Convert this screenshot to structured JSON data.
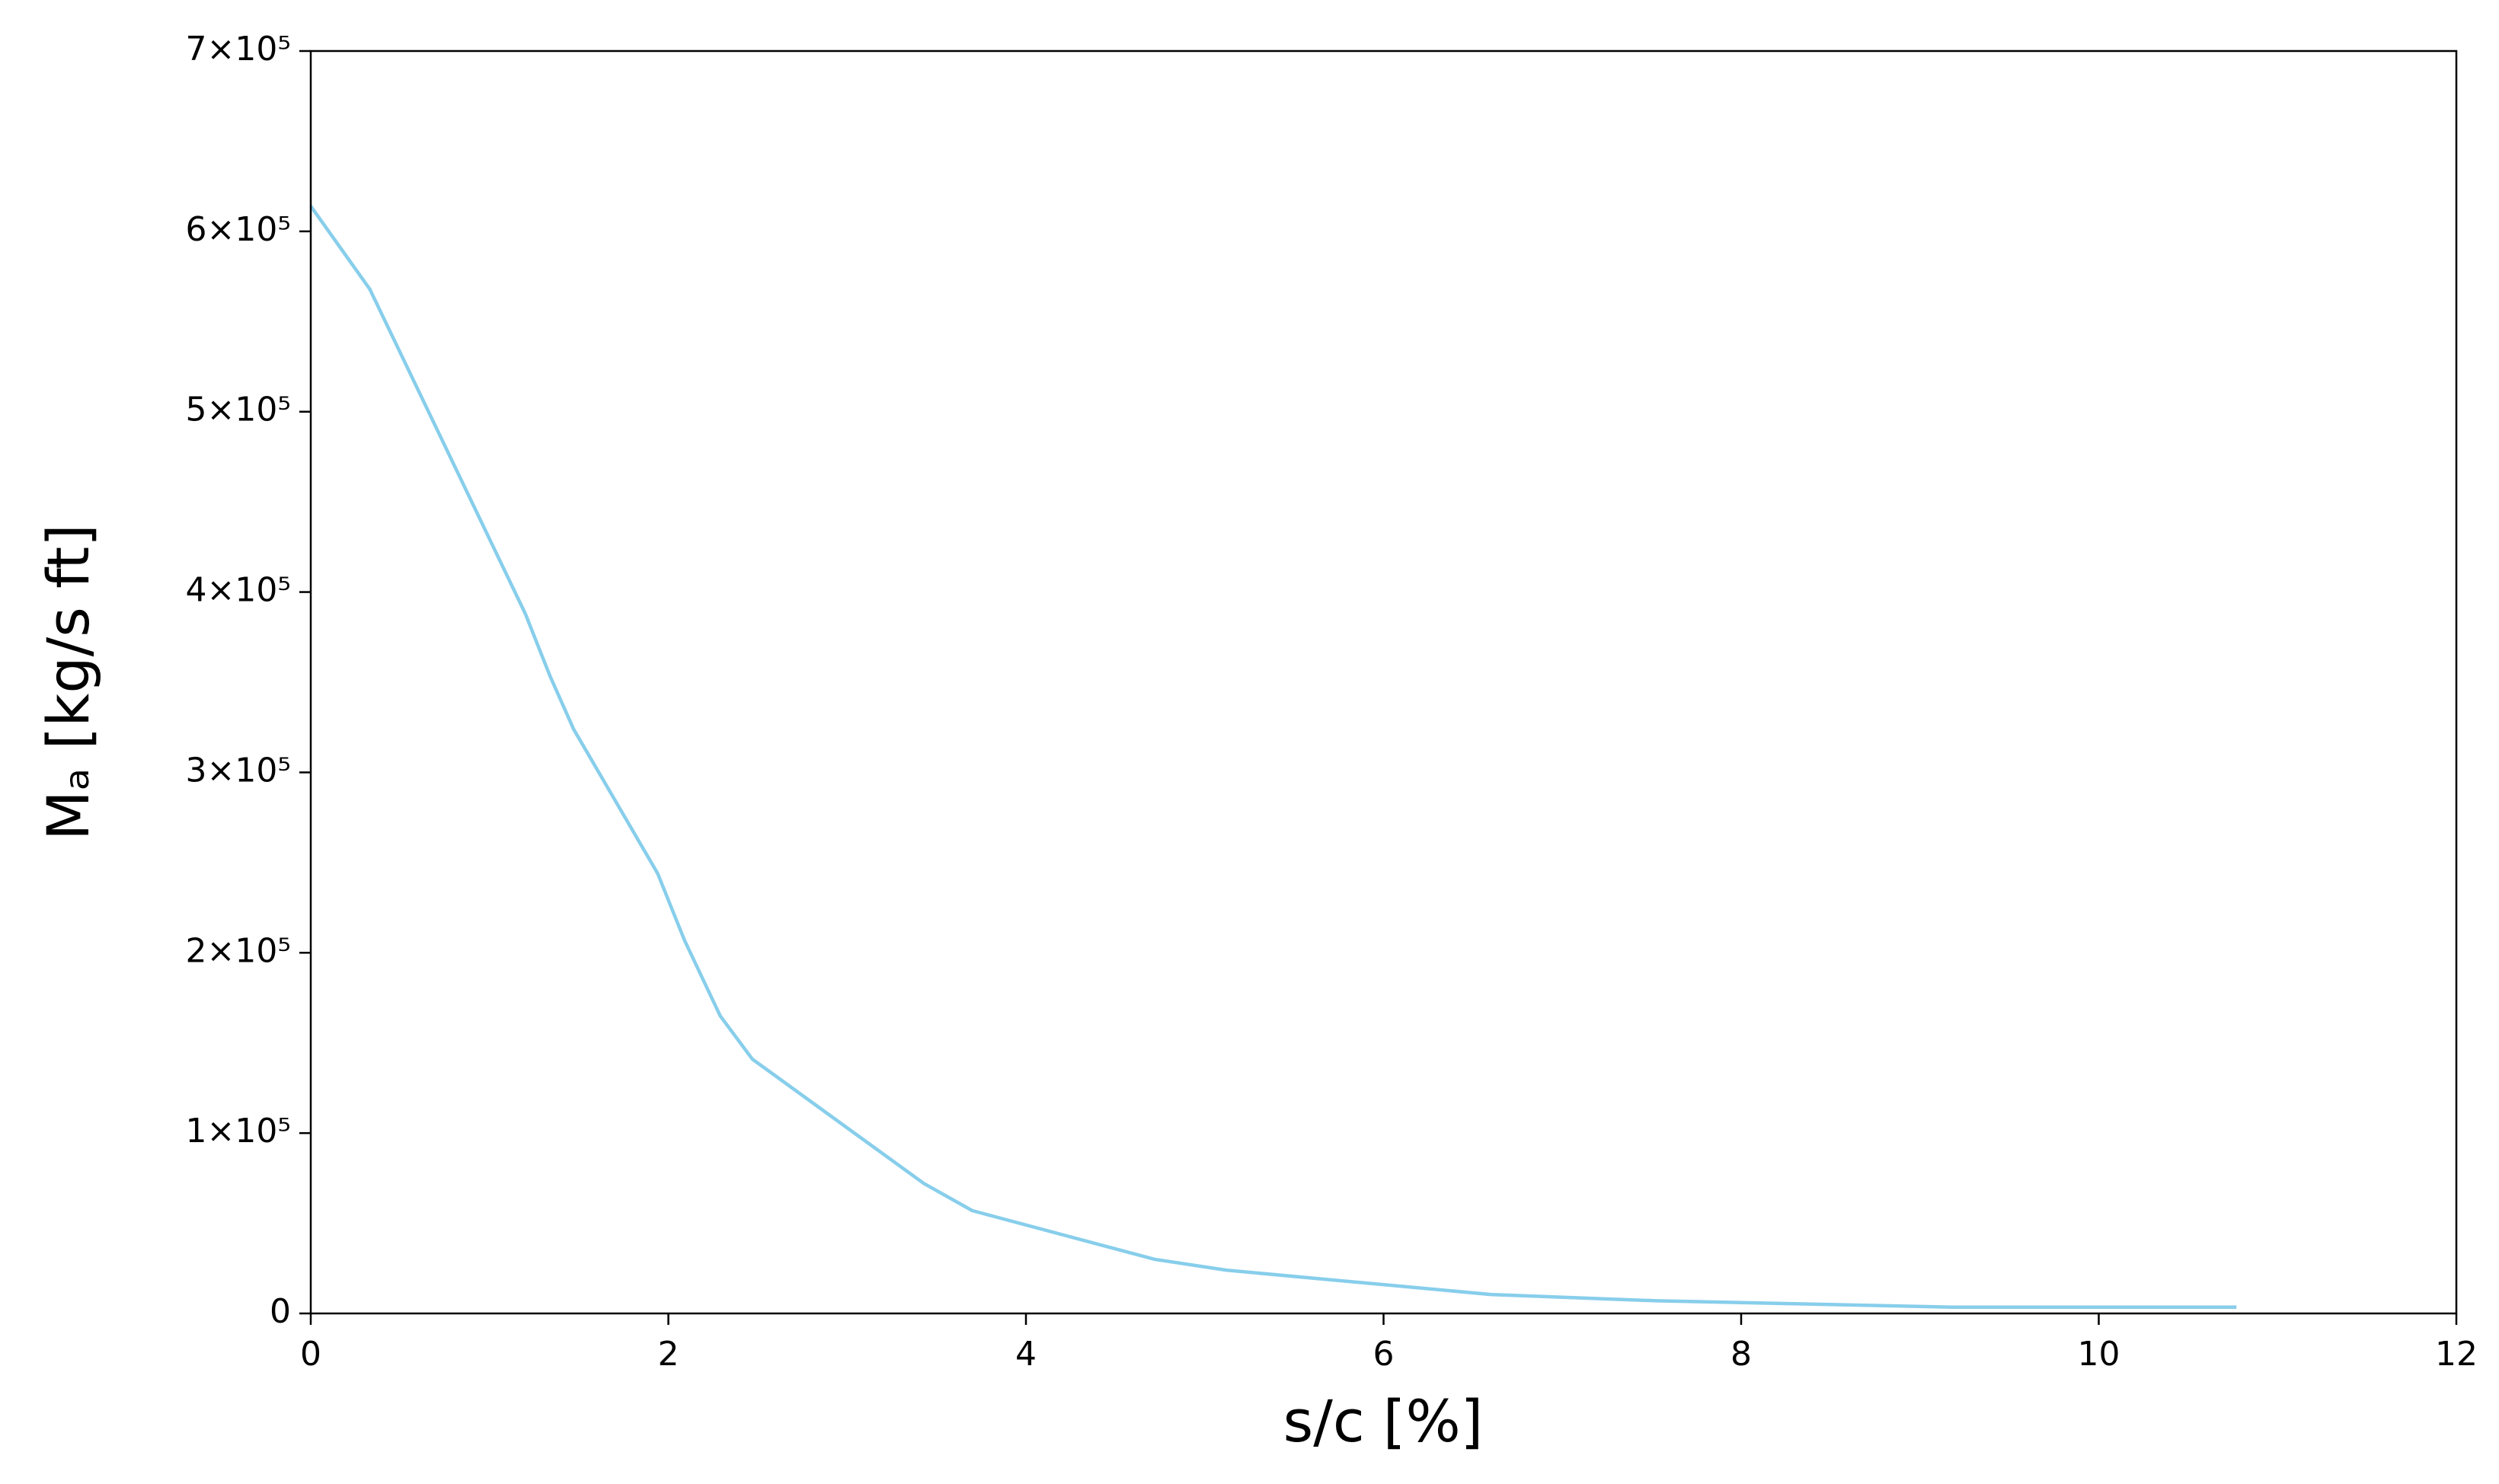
{
  "chart_data": {
    "type": "line",
    "x_label": "s/c [%]",
    "y_label": "Mₐ [kg/s ft]",
    "x": [
      0,
      0.33,
      1.2,
      1.34,
      1.47,
      1.94,
      2.09,
      2.29,
      2.47,
      3.43,
      3.7,
      4.72,
      5.12,
      6.6,
      7.53,
      9.18,
      10.77
    ],
    "values": [
      614000,
      568000,
      388000,
      353000,
      324000,
      244000,
      207000,
      165000,
      141000,
      72000,
      57000,
      30000,
      24000,
      10500,
      7000,
      3500,
      3500
    ],
    "color": "#87ceeb",
    "xlim": [
      0,
      12
    ],
    "xticks": [
      0,
      2,
      4,
      6,
      8,
      10,
      12
    ],
    "ylim": [
      0,
      700000
    ],
    "yticks": [
      0,
      {
        "value": 100000,
        "label": "1×10⁵"
      },
      {
        "value": 200000,
        "label": "2×10⁵"
      },
      {
        "value": 300000,
        "label": "3×10⁵"
      },
      {
        "value": 400000,
        "label": "4×10⁵"
      },
      {
        "value": 500000,
        "label": "5×10⁵"
      },
      {
        "value": 600000,
        "label": "6×10⁵"
      },
      {
        "value": 700000,
        "label": "7×10⁵"
      }
    ],
    "grid": false
  }
}
